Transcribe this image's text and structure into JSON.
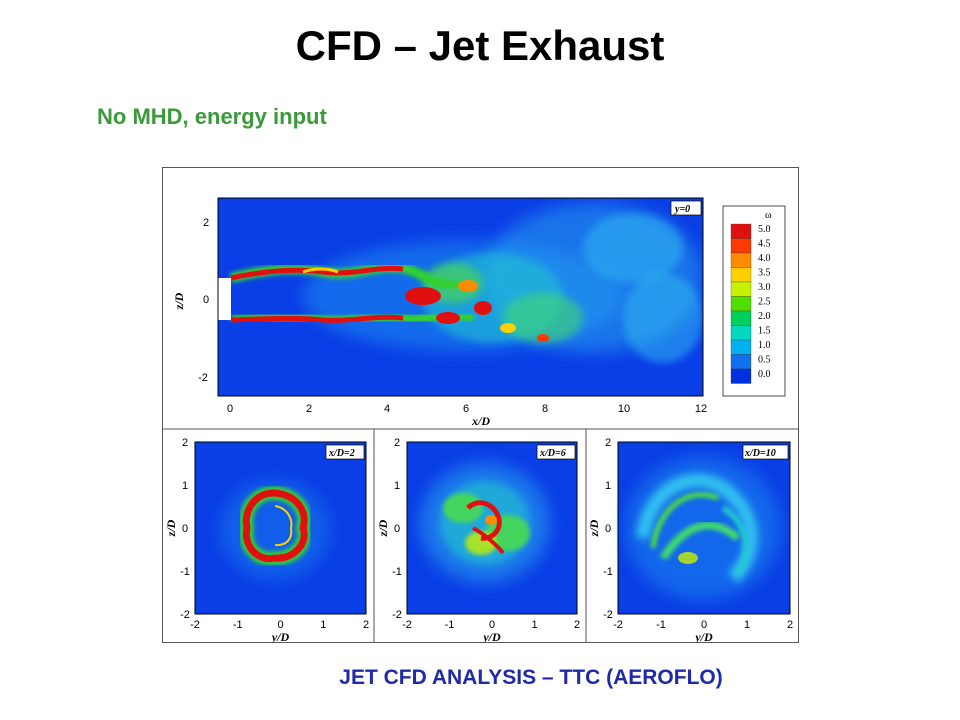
{
  "slide": {
    "title": "CFD – Jet Exhaust",
    "subtitle": "No MHD, energy input",
    "caption": "JET CFD ANALYSIS – TTC (AEROFLO)"
  },
  "top_plot": {
    "tag": "y=0",
    "xlabel": "x/D",
    "ylabel": "z/D",
    "x_ticks": [
      "0",
      "2",
      "4",
      "6",
      "8",
      "10",
      "12"
    ],
    "y_ticks": [
      "2",
      "0",
      "-2"
    ]
  },
  "colorbar": {
    "symbol": "ω",
    "levels": [
      "5.0",
      "4.5",
      "4.0",
      "3.5",
      "3.0",
      "2.5",
      "2.0",
      "1.5",
      "1.0",
      "0.5",
      "0.0"
    ],
    "colors": [
      "#e01010",
      "#ff3a00",
      "#ff8c00",
      "#ffd000",
      "#c8f000",
      "#50e000",
      "#00d060",
      "#00d8c0",
      "#00b0f0",
      "#1070f0",
      "#0030e0"
    ]
  },
  "bottom_plots": [
    {
      "tag": "x/D=2",
      "xlabel": "y/D",
      "ylabel": "z/D"
    },
    {
      "tag": "x/D=6",
      "xlabel": "y/D",
      "ylabel": "z/D"
    },
    {
      "tag": "x/D=10",
      "xlabel": "y/D",
      "ylabel": "z/D"
    }
  ],
  "bottom_x_ticks": [
    "-2",
    "-1",
    "0",
    "1",
    "2"
  ],
  "bottom_y_ticks": [
    "2",
    "1",
    "0",
    "-1",
    "-2"
  ]
}
